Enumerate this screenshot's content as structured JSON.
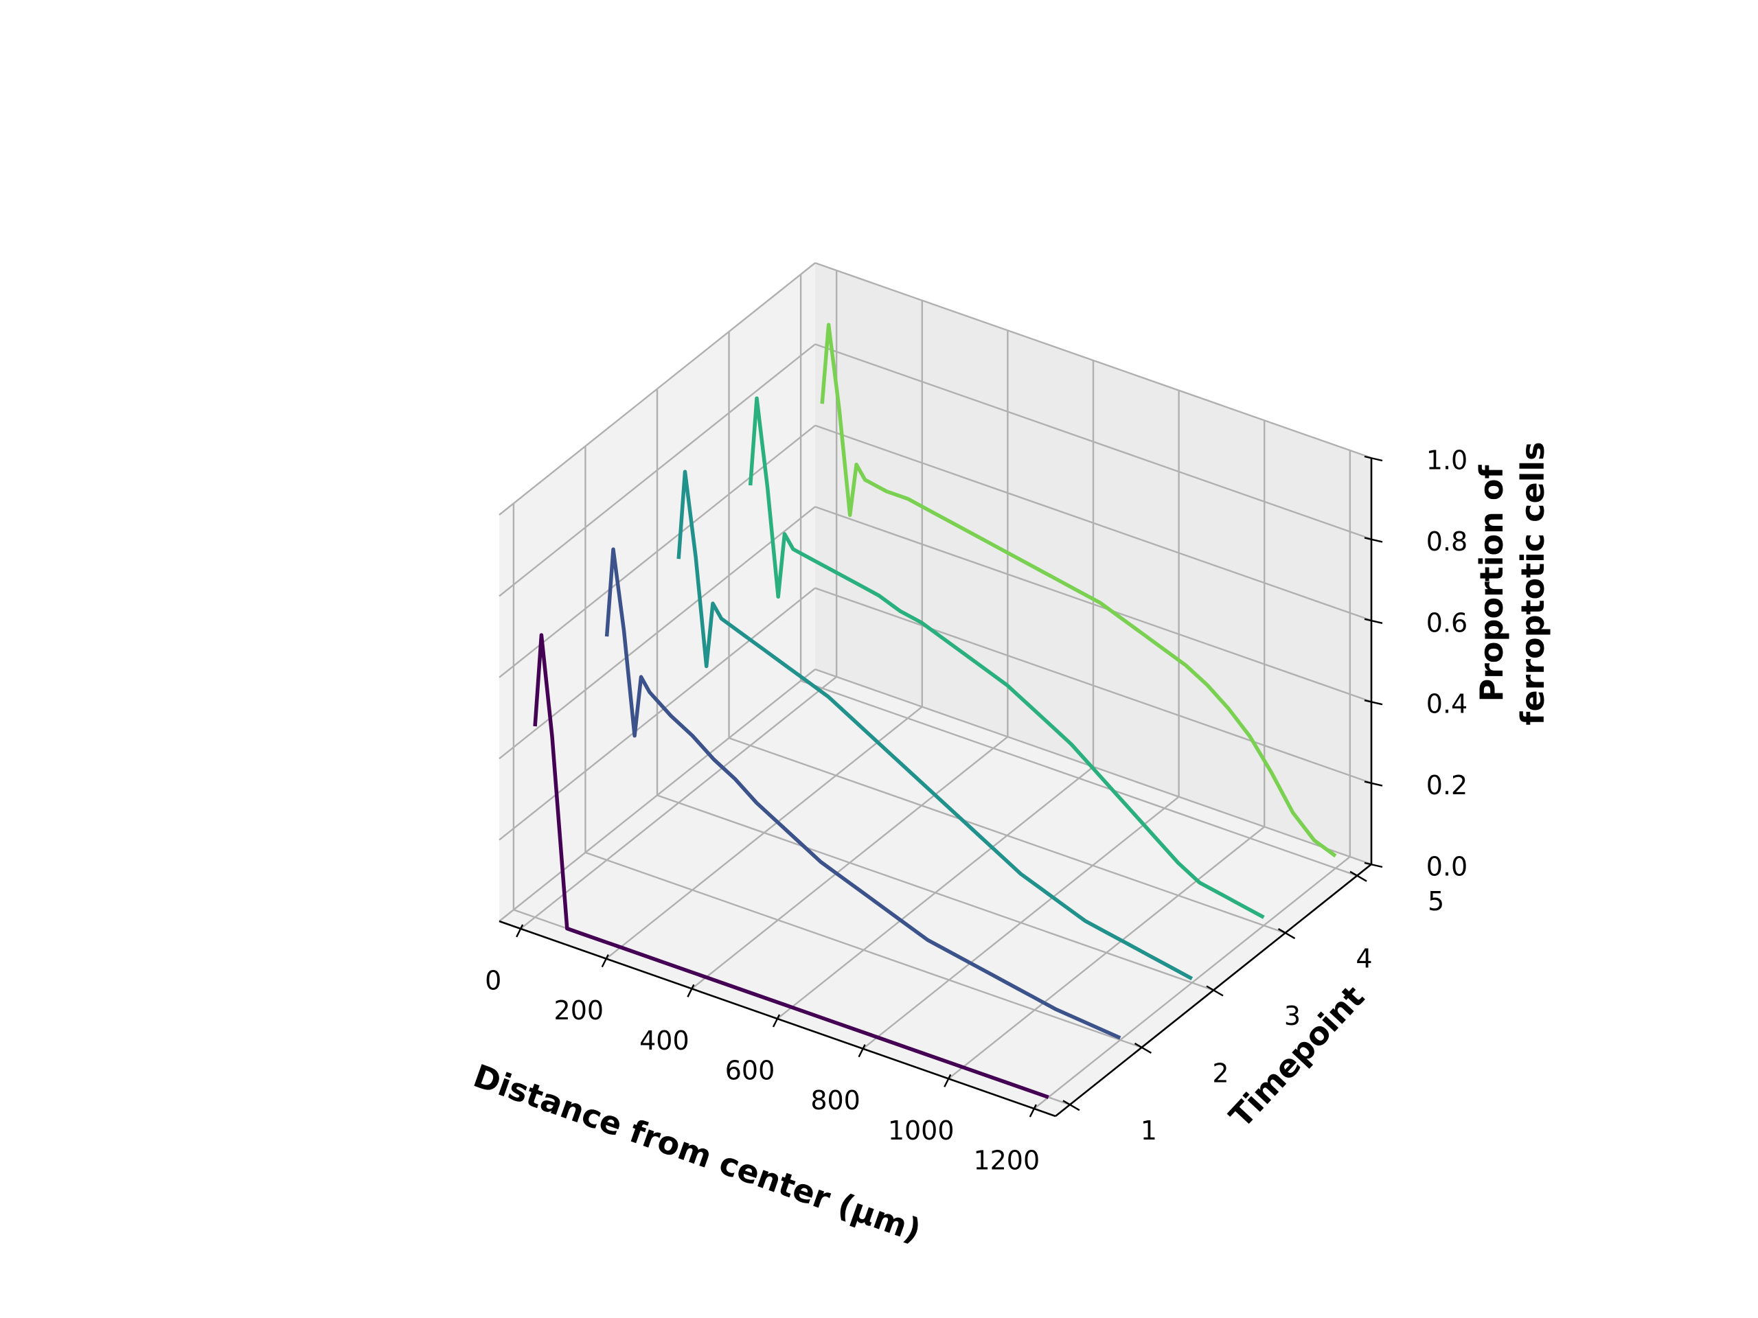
{
  "chart_data": {
    "type": "line",
    "projection": "3d",
    "xlabel": "Distance from center (µm)",
    "ylabel": "Timepoint",
    "zlabel_lines": [
      "Proportion of",
      "ferroptotic cells"
    ],
    "xlim": [
      -50,
      1250
    ],
    "ylim": [
      0.8,
      5.2
    ],
    "zlim": [
      0,
      1
    ],
    "x_ticks": [
      0,
      200,
      400,
      600,
      800,
      1000,
      1200
    ],
    "y_ticks": [
      1,
      2,
      3,
      4,
      5
    ],
    "z_ticks": [
      "0.0",
      "0.2",
      "0.4",
      "0.6",
      "0.8",
      "1.0"
    ],
    "grid": true,
    "colors": [
      "#440154",
      "#3b528b",
      "#21918c",
      "#2ab07f",
      "#7ad151"
    ],
    "series": [
      {
        "timepoint": 1,
        "x": [
          0,
          15,
          40,
          75,
          120,
          200,
          300,
          400,
          500,
          600,
          700,
          800,
          900,
          1000,
          1100,
          1200
        ],
        "z": [
          0.47,
          0.7,
          0.46,
          0.0,
          0.0,
          0.0,
          0.0,
          0.0,
          0.0,
          0.0,
          0.0,
          0.0,
          0.0,
          0.0,
          0.0,
          0.0
        ]
      },
      {
        "timepoint": 2,
        "x": [
          0,
          15,
          40,
          65,
          80,
          100,
          150,
          200,
          250,
          300,
          350,
          400,
          450,
          500,
          550,
          600,
          650,
          700,
          750,
          800,
          850,
          900,
          950,
          1000,
          1050,
          1100,
          1150,
          1200
        ],
        "z": [
          0.55,
          0.77,
          0.58,
          0.33,
          0.48,
          0.45,
          0.41,
          0.38,
          0.34,
          0.31,
          0.27,
          0.24,
          0.21,
          0.18,
          0.16,
          0.14,
          0.12,
          0.1,
          0.08,
          0.07,
          0.06,
          0.05,
          0.04,
          0.03,
          0.02,
          0.015,
          0.01,
          0.005
        ]
      },
      {
        "timepoint": 3,
        "x": [
          0,
          15,
          40,
          65,
          80,
          100,
          150,
          200,
          250,
          300,
          350,
          400,
          450,
          500,
          550,
          600,
          650,
          700,
          750,
          800,
          850,
          900,
          950,
          1000,
          1050,
          1100,
          1150,
          1200
        ],
        "z": [
          0.6,
          0.82,
          0.62,
          0.36,
          0.52,
          0.49,
          0.47,
          0.45,
          0.43,
          0.41,
          0.39,
          0.36,
          0.33,
          0.3,
          0.27,
          0.24,
          0.21,
          0.18,
          0.15,
          0.12,
          0.1,
          0.08,
          0.06,
          0.05,
          0.04,
          0.03,
          0.02,
          0.01
        ]
      },
      {
        "timepoint": 4,
        "x": [
          0,
          15,
          40,
          65,
          80,
          100,
          150,
          200,
          250,
          300,
          350,
          400,
          450,
          500,
          550,
          600,
          650,
          700,
          750,
          800,
          850,
          900,
          950,
          1000,
          1050,
          1100,
          1150,
          1200
        ],
        "z": [
          0.64,
          0.86,
          0.65,
          0.39,
          0.55,
          0.52,
          0.51,
          0.5,
          0.49,
          0.48,
          0.46,
          0.45,
          0.43,
          0.41,
          0.39,
          0.37,
          0.34,
          0.31,
          0.28,
          0.24,
          0.2,
          0.16,
          0.12,
          0.08,
          0.05,
          0.04,
          0.03,
          0.02
        ]
      },
      {
        "timepoint": 5,
        "x": [
          0,
          15,
          40,
          65,
          80,
          100,
          150,
          200,
          250,
          300,
          350,
          400,
          450,
          500,
          550,
          600,
          650,
          700,
          750,
          800,
          850,
          900,
          950,
          1000,
          1050,
          1100,
          1150,
          1200
        ],
        "z": [
          0.7,
          0.9,
          0.7,
          0.45,
          0.58,
          0.55,
          0.54,
          0.54,
          0.53,
          0.52,
          0.51,
          0.5,
          0.49,
          0.48,
          0.47,
          0.46,
          0.45,
          0.43,
          0.41,
          0.39,
          0.37,
          0.34,
          0.3,
          0.25,
          0.18,
          0.1,
          0.05,
          0.03
        ]
      }
    ]
  }
}
